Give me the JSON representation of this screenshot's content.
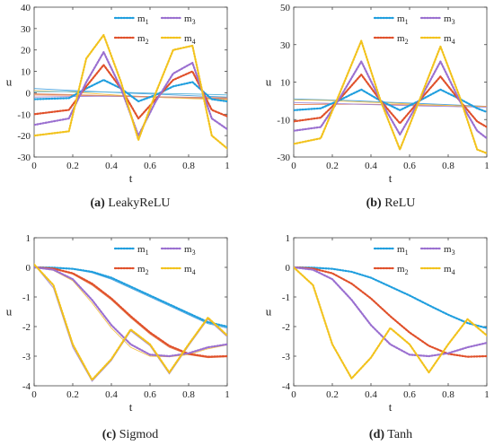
{
  "colors": {
    "m1": "#1f9ede",
    "m2": "#e0502a",
    "m3": "#9a6fd0",
    "m4": "#f2c21b",
    "thin_lines": [
      "#4aa3df",
      "#e67e50",
      "#f3c24a",
      "#a48ad4",
      "#52b1d8",
      "#d98b6a"
    ]
  },
  "chart_data": [
    {
      "type": "line",
      "caption_label": "(a)",
      "caption_text": "LeakyReLU",
      "xlabel": "t",
      "ylabel": "u",
      "xlim": [
        0,
        1
      ],
      "ylim": [
        -30,
        40
      ],
      "xticks": [
        0,
        0.2,
        0.4,
        0.6,
        0.8,
        1
      ],
      "xtick_labels": [
        "0",
        "0.2",
        "0.4",
        "0.6",
        "0.8",
        "1"
      ],
      "yticks": [
        -30,
        -20,
        -10,
        0,
        10,
        20,
        30,
        40
      ],
      "ytick_labels": [
        "-30",
        "-20",
        "-10",
        "0",
        "10",
        "20",
        "30",
        "40"
      ],
      "legend": {
        "position": "top-right",
        "labels": [
          "m",
          "m",
          "m",
          "m"
        ],
        "subscripts": [
          "1",
          "2",
          "3",
          "4"
        ]
      },
      "x": [
        0,
        0.18,
        0.27,
        0.36,
        0.45,
        0.54,
        0.63,
        0.72,
        0.82,
        0.92,
        1.0
      ],
      "series": [
        {
          "key": "m1",
          "values": [
            -3,
            -2.5,
            2,
            6,
            2,
            -4,
            -1,
            3,
            5,
            -3,
            -4
          ]
        },
        {
          "key": "m2",
          "values": [
            -10,
            -8,
            3,
            13,
            2,
            -12,
            -3,
            6,
            10,
            -8,
            -11
          ]
        },
        {
          "key": "m3",
          "values": [
            -15,
            -12,
            5,
            19,
            2,
            -20,
            -4,
            9,
            14,
            -12,
            -17
          ]
        },
        {
          "key": "m4",
          "values": [
            -20,
            -18,
            16,
            27,
            5,
            -22,
            0,
            20,
            22,
            -20,
            -26
          ]
        }
      ],
      "thin_series": [
        [
          2,
          1.2,
          0.5,
          -0.2,
          -0.8,
          -1.4,
          -2
        ],
        [
          -1,
          -1.1,
          -1.4,
          -1.8,
          -2.2,
          -2.5,
          -2.8
        ],
        [
          1,
          0.5,
          -0.5,
          -1.5,
          -2.2,
          -2.8,
          -3.2
        ],
        [
          -2,
          -1.8,
          -1.6,
          -1.7,
          -2,
          -2.2,
          -2.4
        ],
        [
          0.5,
          0.6,
          0.4,
          0.1,
          -0.3,
          -0.6,
          -1
        ],
        [
          -0.5,
          -0.8,
          -1.2,
          -1.6,
          -1.9,
          -2.1,
          -2.3
        ]
      ],
      "thin_x": [
        0,
        0.17,
        0.33,
        0.5,
        0.67,
        0.83,
        1.0
      ]
    },
    {
      "type": "line",
      "caption_label": "(b)",
      "caption_text": "ReLU",
      "xlabel": "t",
      "ylabel": "u",
      "xlim": [
        0,
        1
      ],
      "ylim": [
        -30,
        50
      ],
      "xticks": [
        0,
        0.2,
        0.4,
        0.6,
        0.8,
        1
      ],
      "xtick_labels": [
        "0",
        "0.2",
        "0.4",
        "0.6",
        "0.8",
        "1"
      ],
      "yticks": [
        -30,
        -10,
        10,
        30,
        50
      ],
      "ytick_labels": [
        "-30",
        "-10",
        "10",
        "30",
        "50"
      ],
      "legend": {
        "position": "top-right",
        "labels": [
          "m",
          "m",
          "m",
          "m"
        ],
        "subscripts": [
          "1",
          "2",
          "3",
          "4"
        ]
      },
      "x": [
        0,
        0.14,
        0.23,
        0.35,
        0.45,
        0.55,
        0.65,
        0.76,
        0.86,
        0.95,
        1.0
      ],
      "series": [
        {
          "key": "m1",
          "values": [
            -5,
            -4,
            0,
            6,
            0,
            -5,
            0,
            6,
            1,
            -4,
            -6
          ]
        },
        {
          "key": "m2",
          "values": [
            -11,
            -9,
            0,
            14,
            0,
            -12,
            0,
            13,
            0,
            -11,
            -14
          ]
        },
        {
          "key": "m3",
          "values": [
            -16,
            -14,
            0,
            21,
            0,
            -18,
            0,
            21,
            0,
            -16,
            -20
          ]
        },
        {
          "key": "m4",
          "values": [
            -23,
            -20,
            2,
            32,
            0,
            -26,
            0,
            29,
            2,
            -26,
            -28
          ]
        }
      ],
      "thin_series": [
        [
          1,
          0.5,
          0,
          -0.8,
          -1.5,
          -2.2,
          -3
        ],
        [
          -2,
          -1.8,
          -1.8,
          -2,
          -2.3,
          -2.6,
          -3
        ],
        [
          0.5,
          0.2,
          -0.5,
          -1.2,
          -2,
          -2.6,
          -3.2
        ],
        [
          -1,
          -1.3,
          -1.8,
          -2.3,
          -2.8,
          -3.1,
          -3.4
        ]
      ],
      "thin_x": [
        0,
        0.17,
        0.33,
        0.5,
        0.67,
        0.83,
        1.0
      ]
    },
    {
      "type": "line",
      "caption_label": "(c)",
      "caption_text": "Sigmod",
      "xlabel": "t",
      "ylabel": "u",
      "xlim": [
        0,
        1
      ],
      "ylim": [
        -4,
        1
      ],
      "xticks": [
        0,
        0.2,
        0.4,
        0.6,
        0.8,
        1
      ],
      "xtick_labels": [
        "0",
        "0.2",
        "0.4",
        "0.6",
        "0.8",
        "1"
      ],
      "yticks": [
        -4,
        -3,
        -2,
        -1,
        0,
        1
      ],
      "ytick_labels": [
        "-4",
        "-3",
        "-2",
        "-1",
        "0",
        "1"
      ],
      "legend": {
        "position": "top-right",
        "labels": [
          "m",
          "m",
          "m",
          "m"
        ],
        "subscripts": [
          "1",
          "2",
          "3",
          "4"
        ]
      },
      "x": [
        0,
        0.1,
        0.2,
        0.3,
        0.4,
        0.5,
        0.6,
        0.7,
        0.8,
        0.9,
        1.0
      ],
      "series": [
        {
          "key": "m1",
          "values": [
            0,
            -0.01,
            -0.05,
            -0.15,
            -0.35,
            -0.65,
            -0.95,
            -1.25,
            -1.55,
            -1.85,
            -2.0
          ]
        },
        {
          "key": "m2",
          "values": [
            0,
            -0.04,
            -0.2,
            -0.55,
            -1.05,
            -1.65,
            -2.2,
            -2.65,
            -2.92,
            -3.02,
            -3.0
          ]
        },
        {
          "key": "m3",
          "values": [
            0,
            -0.08,
            -0.4,
            -1.1,
            -1.95,
            -2.6,
            -2.95,
            -3.0,
            -2.9,
            -2.7,
            -2.6
          ]
        },
        {
          "key": "m4",
          "values": [
            0.1,
            -0.6,
            -2.6,
            -3.8,
            -3.1,
            -2.1,
            -2.6,
            -3.55,
            -2.6,
            -1.7,
            -2.3
          ]
        }
      ],
      "thin_series": [
        [
          0,
          -0.01,
          -0.06,
          -0.18,
          -0.4,
          -0.7,
          -1.0,
          -1.3,
          -1.6,
          -1.9,
          -2.05
        ],
        [
          0,
          -0.05,
          -0.23,
          -0.6,
          -1.1,
          -1.7,
          -2.25,
          -2.7,
          -2.95,
          -3.05,
          -3.02
        ],
        [
          0,
          -0.1,
          -0.45,
          -1.2,
          -2.05,
          -2.7,
          -3.0,
          -3.02,
          -2.95,
          -2.75,
          -2.62
        ],
        [
          0.1,
          -0.7,
          -2.7,
          -3.85,
          -3.15,
          -2.15,
          -2.65,
          -3.6,
          -2.65,
          -1.75,
          -2.35
        ]
      ],
      "thin_x": [
        0,
        0.1,
        0.2,
        0.3,
        0.4,
        0.5,
        0.6,
        0.7,
        0.8,
        0.9,
        1.0
      ]
    },
    {
      "type": "line",
      "caption_label": "(d)",
      "caption_text": "Tanh",
      "xlabel": "t",
      "ylabel": "u",
      "xlim": [
        0,
        1
      ],
      "ylim": [
        -4,
        1
      ],
      "xticks": [
        0,
        0.2,
        0.4,
        0.6,
        0.8,
        1
      ],
      "xtick_labels": [
        "0",
        "0.2",
        "0.4",
        "0.6",
        "0.8",
        "1"
      ],
      "yticks": [
        -4,
        -3,
        -2,
        -1,
        0,
        1
      ],
      "ytick_labels": [
        "-4",
        "-3",
        "-2",
        "-1",
        "0",
        "1"
      ],
      "legend": {
        "position": "top-right",
        "labels": [
          "m",
          "m",
          "m",
          "m"
        ],
        "subscripts": [
          "1",
          "2",
          "3",
          "4"
        ]
      },
      "x": [
        0,
        0.1,
        0.2,
        0.3,
        0.4,
        0.5,
        0.6,
        0.7,
        0.8,
        0.9,
        1.0
      ],
      "series": [
        {
          "key": "m1",
          "values": [
            0,
            -0.01,
            -0.05,
            -0.15,
            -0.35,
            -0.65,
            -0.95,
            -1.28,
            -1.6,
            -1.88,
            -2.05
          ]
        },
        {
          "key": "m2",
          "values": [
            0,
            -0.04,
            -0.2,
            -0.55,
            -1.05,
            -1.65,
            -2.2,
            -2.65,
            -2.92,
            -3.02,
            -3.0
          ]
        },
        {
          "key": "m3",
          "values": [
            0,
            -0.08,
            -0.4,
            -1.1,
            -1.95,
            -2.6,
            -2.95,
            -3.0,
            -2.9,
            -2.7,
            -2.55
          ]
        },
        {
          "key": "m4",
          "values": [
            0,
            -0.6,
            -2.6,
            -3.75,
            -3.05,
            -2.05,
            -2.6,
            -3.55,
            -2.6,
            -1.75,
            -2.3
          ]
        }
      ],
      "thin_series": [],
      "thin_x": []
    }
  ]
}
